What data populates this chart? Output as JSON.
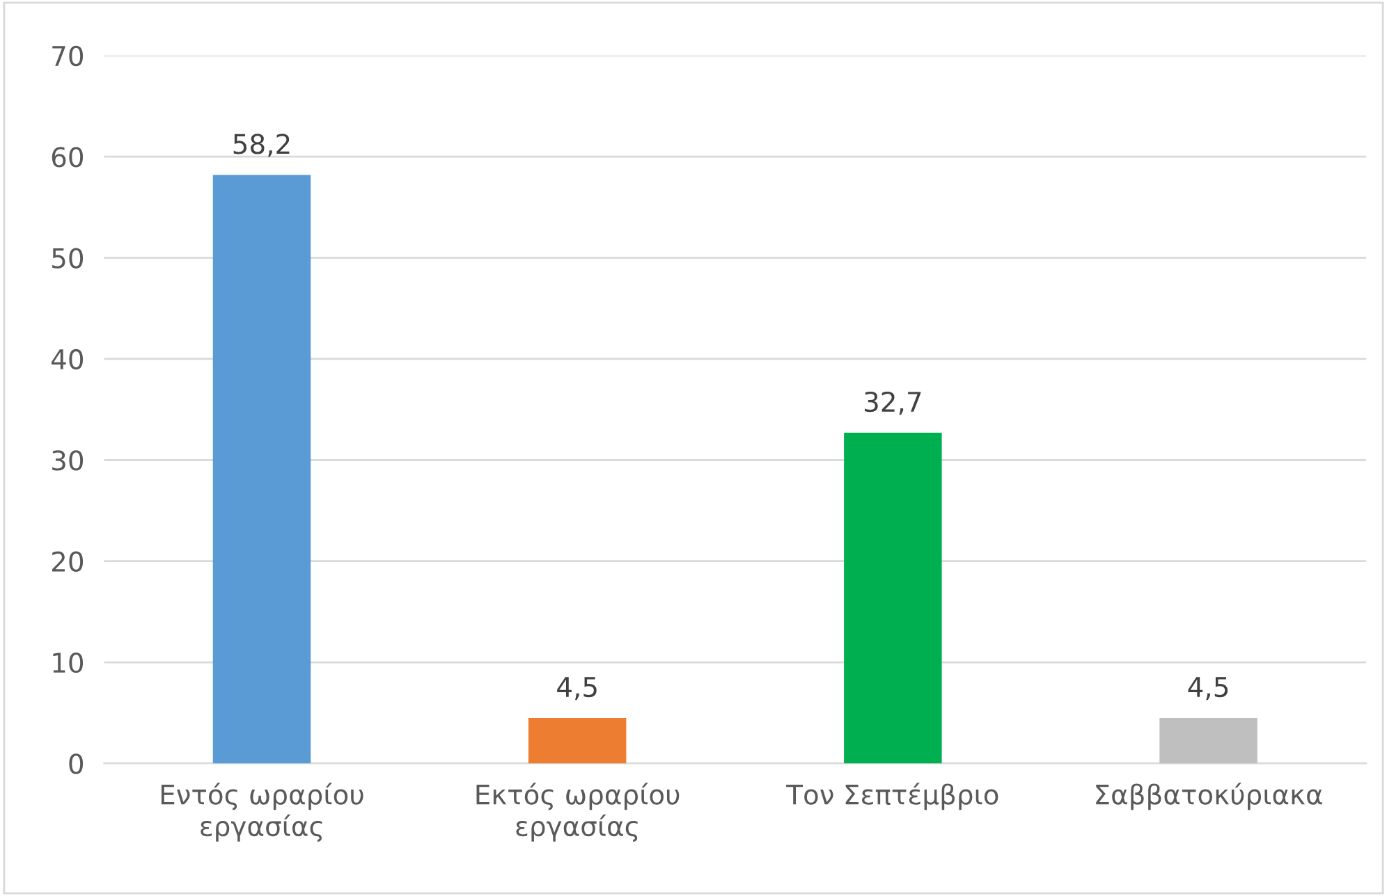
{
  "chart_data": {
    "type": "bar",
    "categories": [
      "Εντός ωραρίου\nεργασίας",
      "Εκτός ωραρίου\nεργασίας",
      "Τον Σεπτέμβριο",
      "Σαββατοκύριακα"
    ],
    "values": [
      58.2,
      4.5,
      32.7,
      4.5
    ],
    "colors": [
      "#5b9bd5",
      "#ed7d31",
      "#00b050",
      "#bfbfbf"
    ],
    "value_labels": [
      "58,2",
      "4,5",
      "32,7",
      "4,5"
    ],
    "ylim": [
      0,
      70
    ],
    "yticks": [
      0,
      10,
      20,
      30,
      40,
      50,
      60,
      70
    ],
    "grid": "y",
    "legend": false
  }
}
